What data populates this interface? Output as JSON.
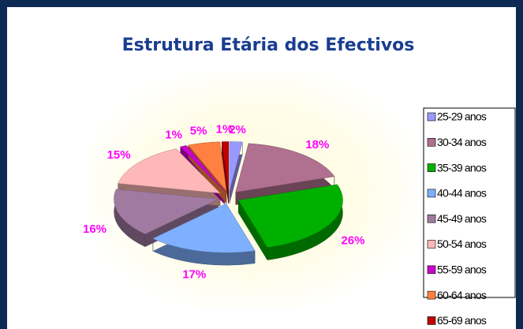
{
  "chart_data": {
    "type": "pie3d",
    "title": "Estrutura Etária dos Efectivos",
    "categories": [
      "25-29 anos",
      "30-34 anos",
      "35-39 anos",
      "40-44 anos",
      "45-49 anos",
      "50-54 anos",
      "55-59 anos",
      "60-64 anos",
      "65-69 anos"
    ],
    "values": [
      2,
      18,
      26,
      17,
      16,
      15,
      1,
      5,
      1
    ],
    "value_labels": [
      "2%",
      "18%",
      "26%",
      "17%",
      "16%",
      "15%",
      "1%",
      "5%",
      "1%"
    ],
    "colors": [
      "#9999ff",
      "#b07090",
      "#00b000",
      "#7fb0ff",
      "#a07aa0",
      "#ffb8b8",
      "#cc00cc",
      "#ff8040",
      "#c00000"
    ],
    "legend": "right"
  }
}
